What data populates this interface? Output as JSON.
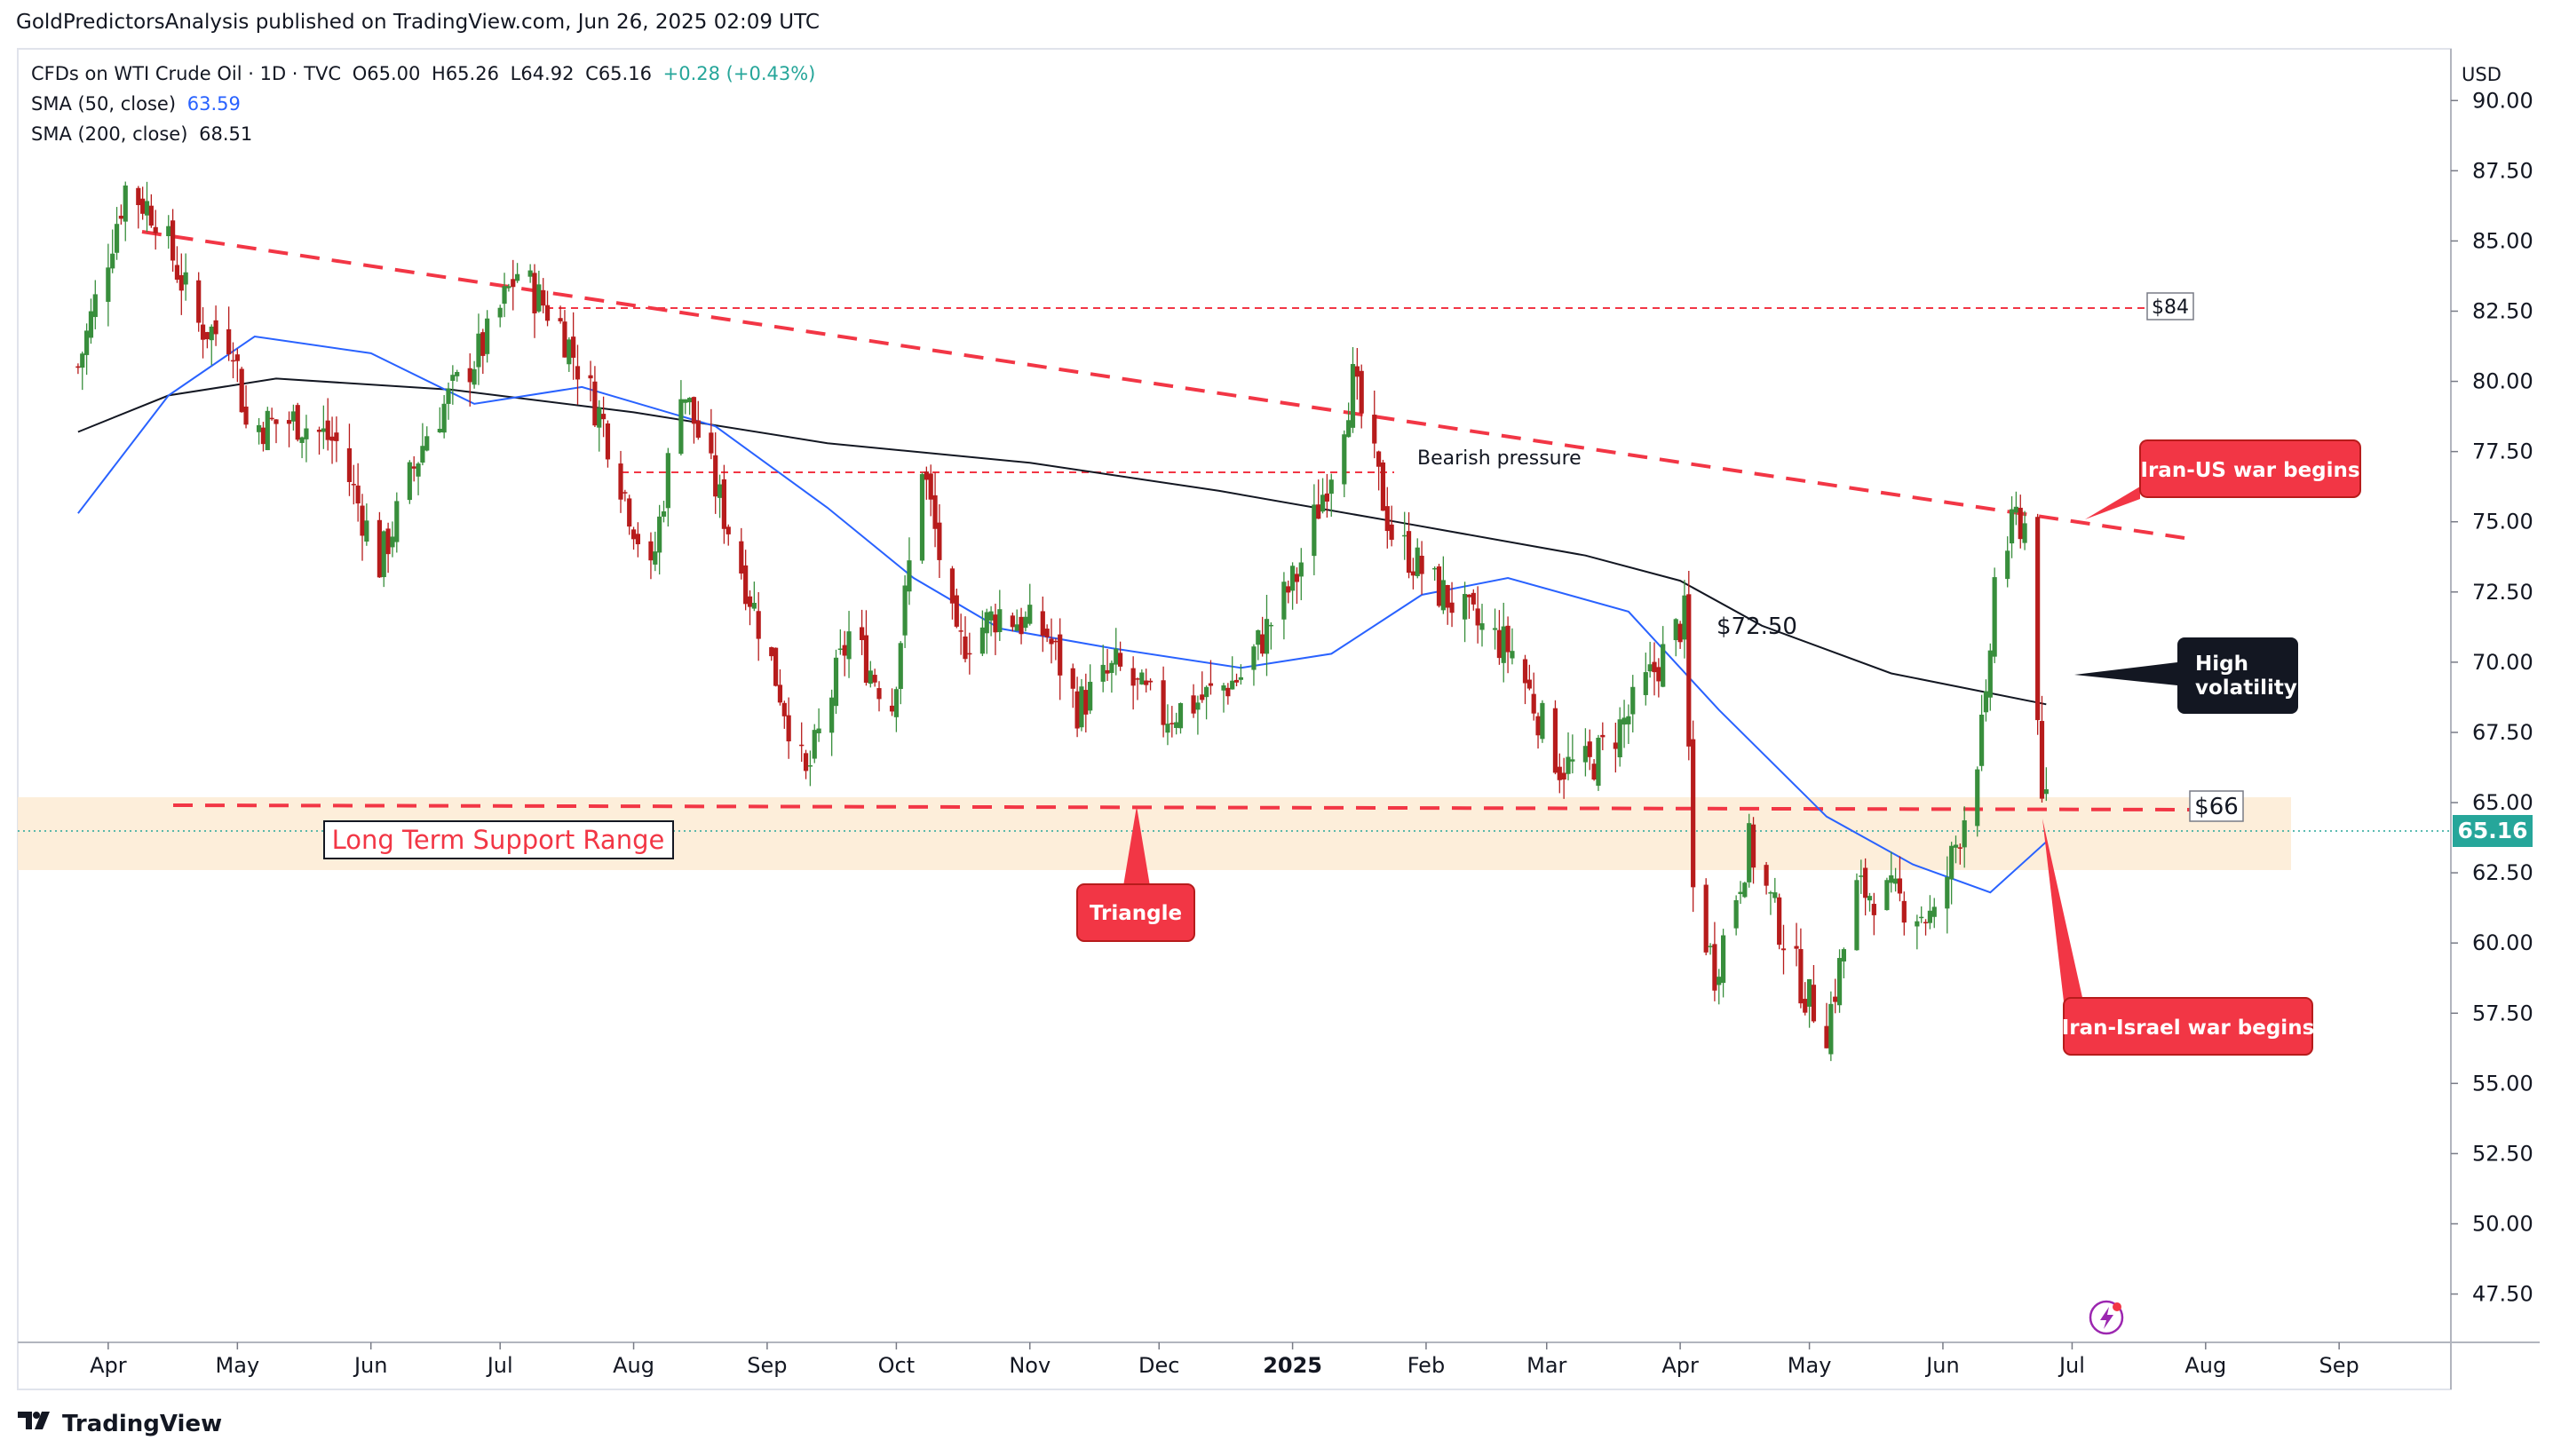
{
  "header": {
    "published": "GoldPredictorsAnalysis published on TradingView.com, Jun 26, 2025 02:09 UTC"
  },
  "legend": {
    "symbol": "CFDs on WTI Crude Oil · 1D · TVC",
    "open": "O65.00",
    "high": "H65.26",
    "low": "L64.92",
    "close": "C65.16",
    "change": "+0.28 (+0.43%)",
    "sma50_label": "SMA (50, close)",
    "sma50_value": "63.59",
    "sma200_label": "SMA (200, close)",
    "sma200_value": "68.51"
  },
  "currency": "USD",
  "footer": {
    "brand": "TradingView"
  },
  "colors": {
    "up": "#26a69a",
    "up_candle": "#388e3c",
    "down_candle": "#b71c1c",
    "sma50": "#2962ff",
    "sma200": "#131722",
    "red": "#f23645",
    "support_band": "#fdebd3",
    "price_tag": "#26a69a"
  },
  "chart_data": {
    "type": "candlestick",
    "ylim": [
      46,
      92
    ],
    "y_ticks": [
      "47.50",
      "50.00",
      "52.50",
      "55.00",
      "57.50",
      "60.00",
      "62.50",
      "65.00",
      "67.50",
      "70.00",
      "72.50",
      "75.00",
      "77.50",
      "80.00",
      "82.50",
      "85.00",
      "87.50",
      "90.00"
    ],
    "x_ticks": [
      "Apr",
      "May",
      "Jun",
      "Jul",
      "Aug",
      "Sep",
      "Oct",
      "Nov",
      "Dec",
      "2025",
      "Feb",
      "Mar",
      "Apr",
      "May",
      "Jun",
      "Jul",
      "Aug",
      "Sep"
    ],
    "last_price": "65.16",
    "price_path": [
      [
        "2024-03-25",
        80.5
      ],
      [
        "2024-04-05",
        86.9
      ],
      [
        "2024-04-12",
        86.0
      ],
      [
        "2024-04-22",
        82.0
      ],
      [
        "2024-04-30",
        81.5
      ],
      [
        "2024-05-03",
        78.4
      ],
      [
        "2024-05-15",
        78.6
      ],
      [
        "2024-05-24",
        77.8
      ],
      [
        "2024-06-03",
        73.5
      ],
      [
        "2024-06-14",
        78.2
      ],
      [
        "2024-06-28",
        81.5
      ],
      [
        "2024-07-05",
        83.9
      ],
      [
        "2024-07-15",
        82.0
      ],
      [
        "2024-07-25",
        78.5
      ],
      [
        "2024-08-05",
        73.0
      ],
      [
        "2024-08-12",
        80.0
      ],
      [
        "2024-08-23",
        74.8
      ],
      [
        "2024-09-04",
        69.0
      ],
      [
        "2024-09-10",
        65.8
      ],
      [
        "2024-09-20",
        71.0
      ],
      [
        "2024-09-30",
        68.5
      ],
      [
        "2024-10-07",
        77.1
      ],
      [
        "2024-10-15",
        70.5
      ],
      [
        "2024-10-25",
        71.8
      ],
      [
        "2024-11-05",
        71.0
      ],
      [
        "2024-11-12",
        68.4
      ],
      [
        "2024-11-21",
        69.8
      ],
      [
        "2024-12-02",
        68.1
      ],
      [
        "2024-12-10",
        68.6
      ],
      [
        "2024-12-20",
        69.5
      ],
      [
        "2025-01-02",
        73.1
      ],
      [
        "2025-01-10",
        77.0
      ],
      [
        "2025-01-15",
        80.0
      ],
      [
        "2025-01-24",
        74.6
      ],
      [
        "2025-02-03",
        72.7
      ],
      [
        "2025-02-12",
        71.4
      ],
      [
        "2025-02-21",
        70.4
      ],
      [
        "2025-03-04",
        66.3
      ],
      [
        "2025-03-11",
        66.3
      ],
      [
        "2025-03-20",
        68.1
      ],
      [
        "2025-04-02",
        71.6
      ],
      [
        "2025-04-04",
        61.9
      ],
      [
        "2025-04-09",
        59.0
      ],
      [
        "2025-04-17",
        63.5
      ],
      [
        "2025-04-30",
        58.2
      ],
      [
        "2025-05-05",
        57.0
      ],
      [
        "2025-05-12",
        61.9
      ],
      [
        "2025-05-21",
        61.6
      ],
      [
        "2025-05-30",
        60.8
      ],
      [
        "2025-06-06",
        64.6
      ],
      [
        "2025-06-11",
        68.2
      ],
      [
        "2025-06-13",
        72.9
      ],
      [
        "2025-06-18",
        75.1
      ],
      [
        "2025-06-20",
        74.9
      ],
      [
        "2025-06-23",
        68.5
      ],
      [
        "2025-06-24",
        64.4
      ],
      [
        "2025-06-25",
        65.16
      ]
    ],
    "sma50": [
      [
        "2024-03-25",
        75.3
      ],
      [
        "2024-04-15",
        79.5
      ],
      [
        "2024-05-05",
        81.6
      ],
      [
        "2024-06-01",
        81.0
      ],
      [
        "2024-06-25",
        79.2
      ],
      [
        "2024-07-20",
        79.8
      ],
      [
        "2024-08-20",
        78.4
      ],
      [
        "2024-09-15",
        75.5
      ],
      [
        "2024-10-05",
        73.0
      ],
      [
        "2024-10-25",
        71.2
      ],
      [
        "2024-11-20",
        70.5
      ],
      [
        "2024-12-20",
        69.8
      ],
      [
        "2025-01-10",
        70.3
      ],
      [
        "2025-01-31",
        72.4
      ],
      [
        "2025-02-20",
        73.0
      ],
      [
        "2025-03-20",
        71.8
      ],
      [
        "2025-04-10",
        68.3
      ],
      [
        "2025-05-05",
        64.5
      ],
      [
        "2025-05-25",
        62.8
      ],
      [
        "2025-06-12",
        61.8
      ],
      [
        "2025-06-25",
        63.6
      ]
    ],
    "sma200": [
      [
        "2024-03-25",
        78.2
      ],
      [
        "2024-04-15",
        79.5
      ],
      [
        "2024-05-10",
        80.1
      ],
      [
        "2024-06-20",
        79.7
      ],
      [
        "2024-08-01",
        78.9
      ],
      [
        "2024-09-15",
        77.8
      ],
      [
        "2024-11-01",
        77.1
      ],
      [
        "2024-12-15",
        76.1
      ],
      [
        "2025-01-25",
        75.0
      ],
      [
        "2025-03-10",
        73.8
      ],
      [
        "2025-04-01",
        72.9
      ],
      [
        "2025-04-20",
        71.3
      ],
      [
        "2025-05-20",
        69.6
      ],
      [
        "2025-06-25",
        68.5
      ]
    ],
    "annotations": {
      "resistance_84": "$84",
      "support_66": "$66",
      "level_7250": "$72.50",
      "bearish": "Bearish pressure",
      "support_range": "Long Term Support Range",
      "triangle": "Triangle",
      "iran_us": "Iran-US war begins",
      "high_vol_1": "High",
      "high_vol_2": "volatility",
      "iran_israel": "Iran-Israel war begins"
    }
  }
}
